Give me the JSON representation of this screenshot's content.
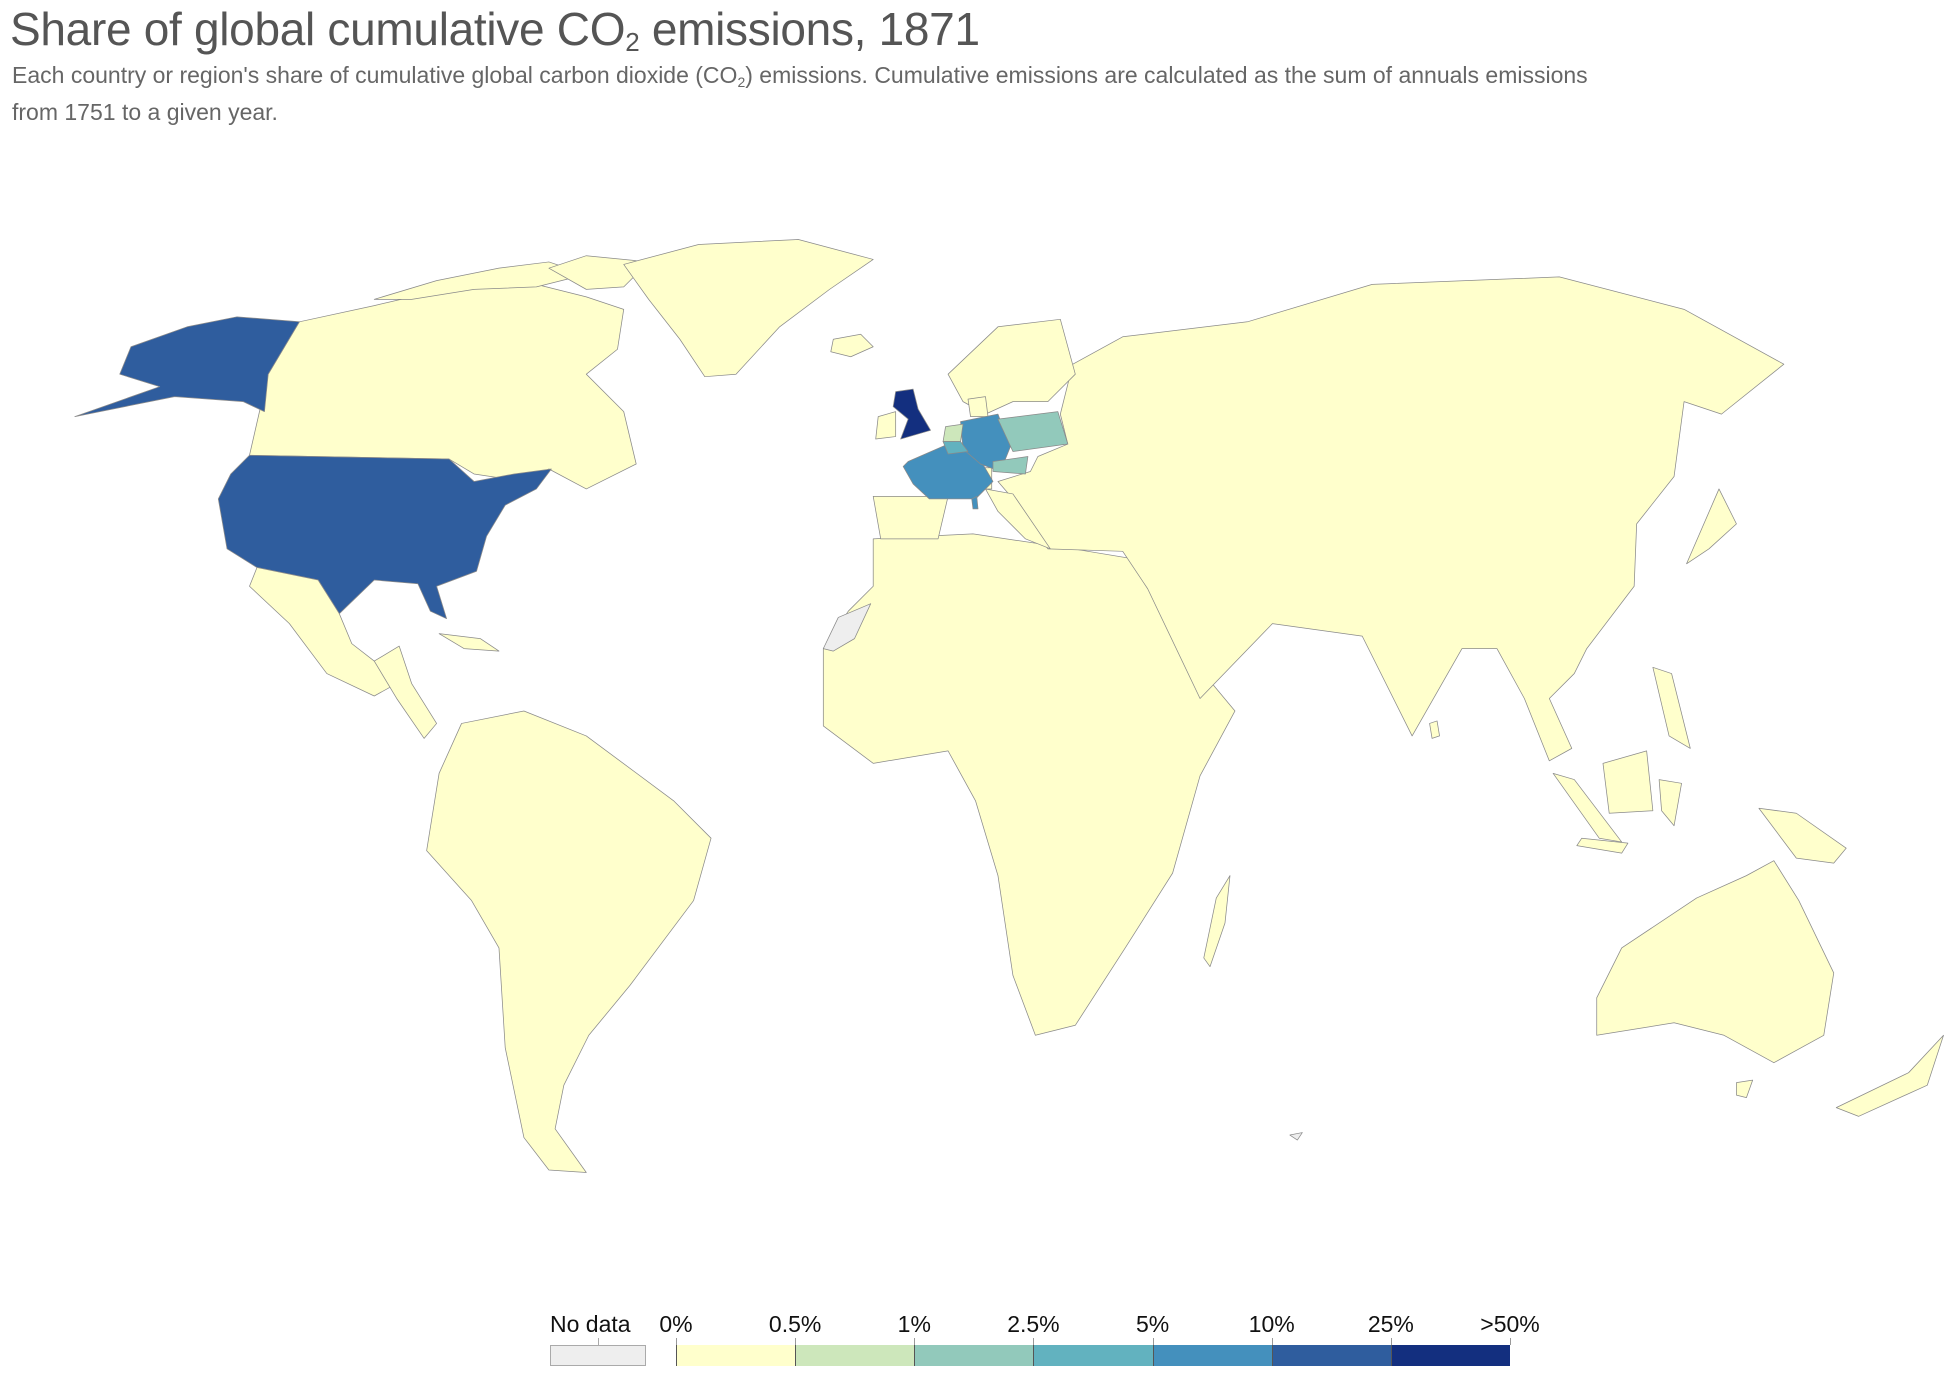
{
  "header": {
    "title_pre": "Share of global cumulative CO",
    "title_sub": "2",
    "title_post": " emissions, 1871",
    "subtitle_line1_pre": "Each country or region's share of cumulative global carbon dioxide (CO",
    "subtitle_line1_sub": "2",
    "subtitle_line1_post": ") emissions. Cumulative emissions are calculated as the sum of annuals emissions",
    "subtitle_line2": "from 1751 to a given year."
  },
  "legend": {
    "no_data_label": "No data",
    "no_data_color": "#eeeeee",
    "tick_labels": [
      "0%",
      "0.5%",
      "1%",
      "2.5%",
      "5%",
      "10%",
      "25%",
      ">50%"
    ],
    "bin_colors": [
      "#ffffcc",
      "#cde7bb",
      "#92c9bb",
      "#62b2bf",
      "#4490bd",
      "#2f5d9e",
      "#132f7f"
    ]
  },
  "chart_data": {
    "type": "choropleth",
    "title": "Share of global cumulative CO2 emissions, 1871",
    "year": 1871,
    "bins": [
      "0%",
      "0.5%",
      "1%",
      "2.5%",
      "5%",
      "10%",
      "25%",
      ">50%"
    ],
    "highlighted_bins": {
      "United Kingdom": "25%–>50%",
      "United States": "10%–25%",
      "France": "5%–10%",
      "Germany": "5%–10%",
      "Belgium": "2.5%–5%",
      "Poland": "1%–2.5%",
      "Austria": "1%–2.5%",
      "Netherlands": "0.5%–1%",
      "Western Sahara": "No data",
      "Kosovo": "No data"
    },
    "other_countries_bin": "0%–0.5%"
  }
}
